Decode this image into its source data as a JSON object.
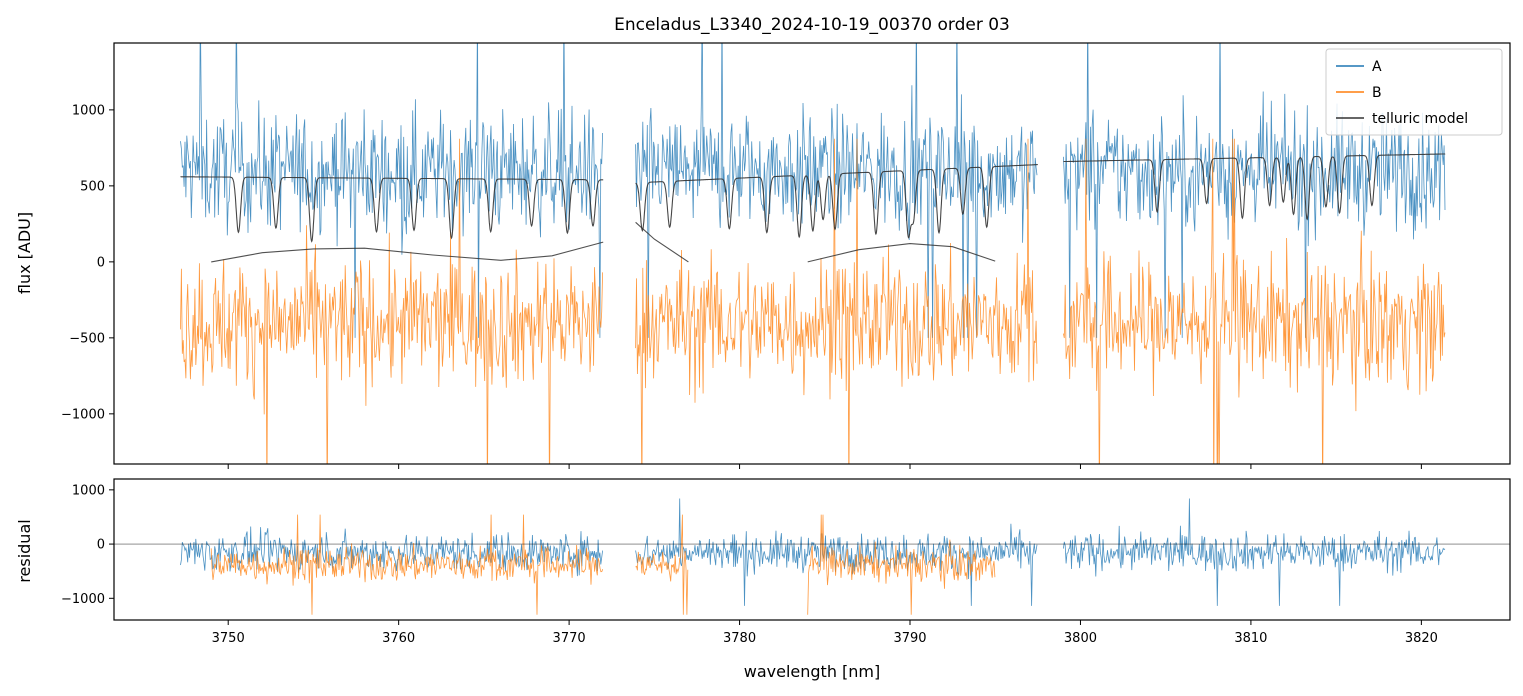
{
  "chart_data": [
    {
      "type": "line",
      "panel": "top",
      "title": "Enceladus_L3340_2024-10-19_00370  order 03",
      "xlabel": "",
      "ylabel": "flux [ADU]",
      "xlim": [
        3743.3,
        3825.2
      ],
      "ylim": [
        -1330,
        1440
      ],
      "x_ticks": [
        3750,
        3760,
        3770,
        3780,
        3790,
        3800,
        3810,
        3820
      ],
      "y_ticks": [
        -1000,
        -500,
        0,
        500,
        1000
      ],
      "y_tick_labels": [
        "−1000",
        "−500",
        "0",
        "500",
        "1000"
      ],
      "grid": false,
      "legend": {
        "placement": "top-right",
        "entries": [
          "A",
          "B",
          "telluric model"
        ]
      },
      "segments": [
        [
          3747.2,
          3772.0
        ],
        [
          3773.9,
          3797.5
        ],
        [
          3799.0,
          3821.4
        ]
      ],
      "series": [
        {
          "name": "A",
          "color": "#1f77b4",
          "mean": 600,
          "noise_amplitude": 500,
          "note_range": [
            -1000,
            1440
          ]
        },
        {
          "name": "B",
          "color": "#ff7f0e",
          "mean": -400,
          "noise_amplitude": 550,
          "note_range": [
            -1330,
            300
          ]
        },
        {
          "name": "telluric model",
          "color": "#333333",
          "continuum": [
            [
              3747.2,
              560
            ],
            [
              3772.0,
              540
            ],
            [
              3773.9,
              520
            ],
            [
              3797.5,
              640
            ],
            [
              3799.0,
              660
            ],
            [
              3821.4,
              710
            ]
          ],
          "absorption_lines": [
            3750.6,
            3752.8,
            3754.9,
            3758.7,
            3760.9,
            3763.1,
            3765.4,
            3767.8,
            3769.9,
            3771.4,
            3774.3,
            3775.9,
            3779.4,
            3781.6,
            3783.5,
            3784.3,
            3784.9,
            3785.6,
            3788.0,
            3789.9,
            3790.2,
            3791.7,
            3793.1,
            3794.5,
            3804.5,
            3807.4,
            3809.5,
            3811.1,
            3811.9,
            3812.5,
            3813.3,
            3814.4,
            3815.2,
            3817.1
          ]
        },
        {
          "name": "telluric model (B)",
          "color": "#333333",
          "curves": [
            [
              [
                3749.0,
                0
              ],
              [
                3752.0,
                60
              ],
              [
                3755.0,
                85
              ],
              [
                3758.0,
                90
              ],
              [
                3762.0,
                45
              ],
              [
                3766.0,
                10
              ],
              [
                3769.0,
                40
              ],
              [
                3772.0,
                130
              ]
            ],
            [
              [
                3773.9,
                260
              ],
              [
                3775.0,
                150
              ],
              [
                3777.0,
                0
              ]
            ],
            [
              [
                3784.0,
                0
              ],
              [
                3787.0,
                80
              ],
              [
                3790.0,
                120
              ],
              [
                3792.5,
                100
              ],
              [
                3795.0,
                5
              ]
            ]
          ]
        }
      ]
    },
    {
      "type": "line",
      "panel": "bottom",
      "title": "",
      "xlabel": "wavelength [nm]",
      "ylabel": "residual",
      "xlim": [
        3743.3,
        3825.2
      ],
      "ylim": [
        -1400,
        1200
      ],
      "x_ticks": [
        3750,
        3760,
        3770,
        3780,
        3790,
        3800,
        3810,
        3820
      ],
      "x_tick_labels": [
        "3750",
        "3760",
        "3770",
        "3780",
        "3790",
        "3800",
        "3810",
        "3820"
      ],
      "y_ticks": [
        -1000,
        0,
        1000
      ],
      "y_tick_labels": [
        "−1000",
        "0",
        "1000"
      ],
      "grid": false,
      "zero_line": 0,
      "series": [
        {
          "name": "A",
          "color": "#1f77b4",
          "segments": [
            [
              3747.2,
              3772.0
            ],
            [
              3773.9,
              3797.5
            ],
            [
              3799.0,
              3821.4
            ]
          ],
          "mean": -150,
          "noise_amplitude": 450
        },
        {
          "name": "B",
          "color": "#ff7f0e",
          "segments": [
            [
              3749.0,
              3772.0
            ],
            [
              3773.9,
              3777.0
            ],
            [
              3784.0,
              3795.0
            ]
          ],
          "mean": -380,
          "noise_amplitude": 420
        }
      ]
    }
  ]
}
